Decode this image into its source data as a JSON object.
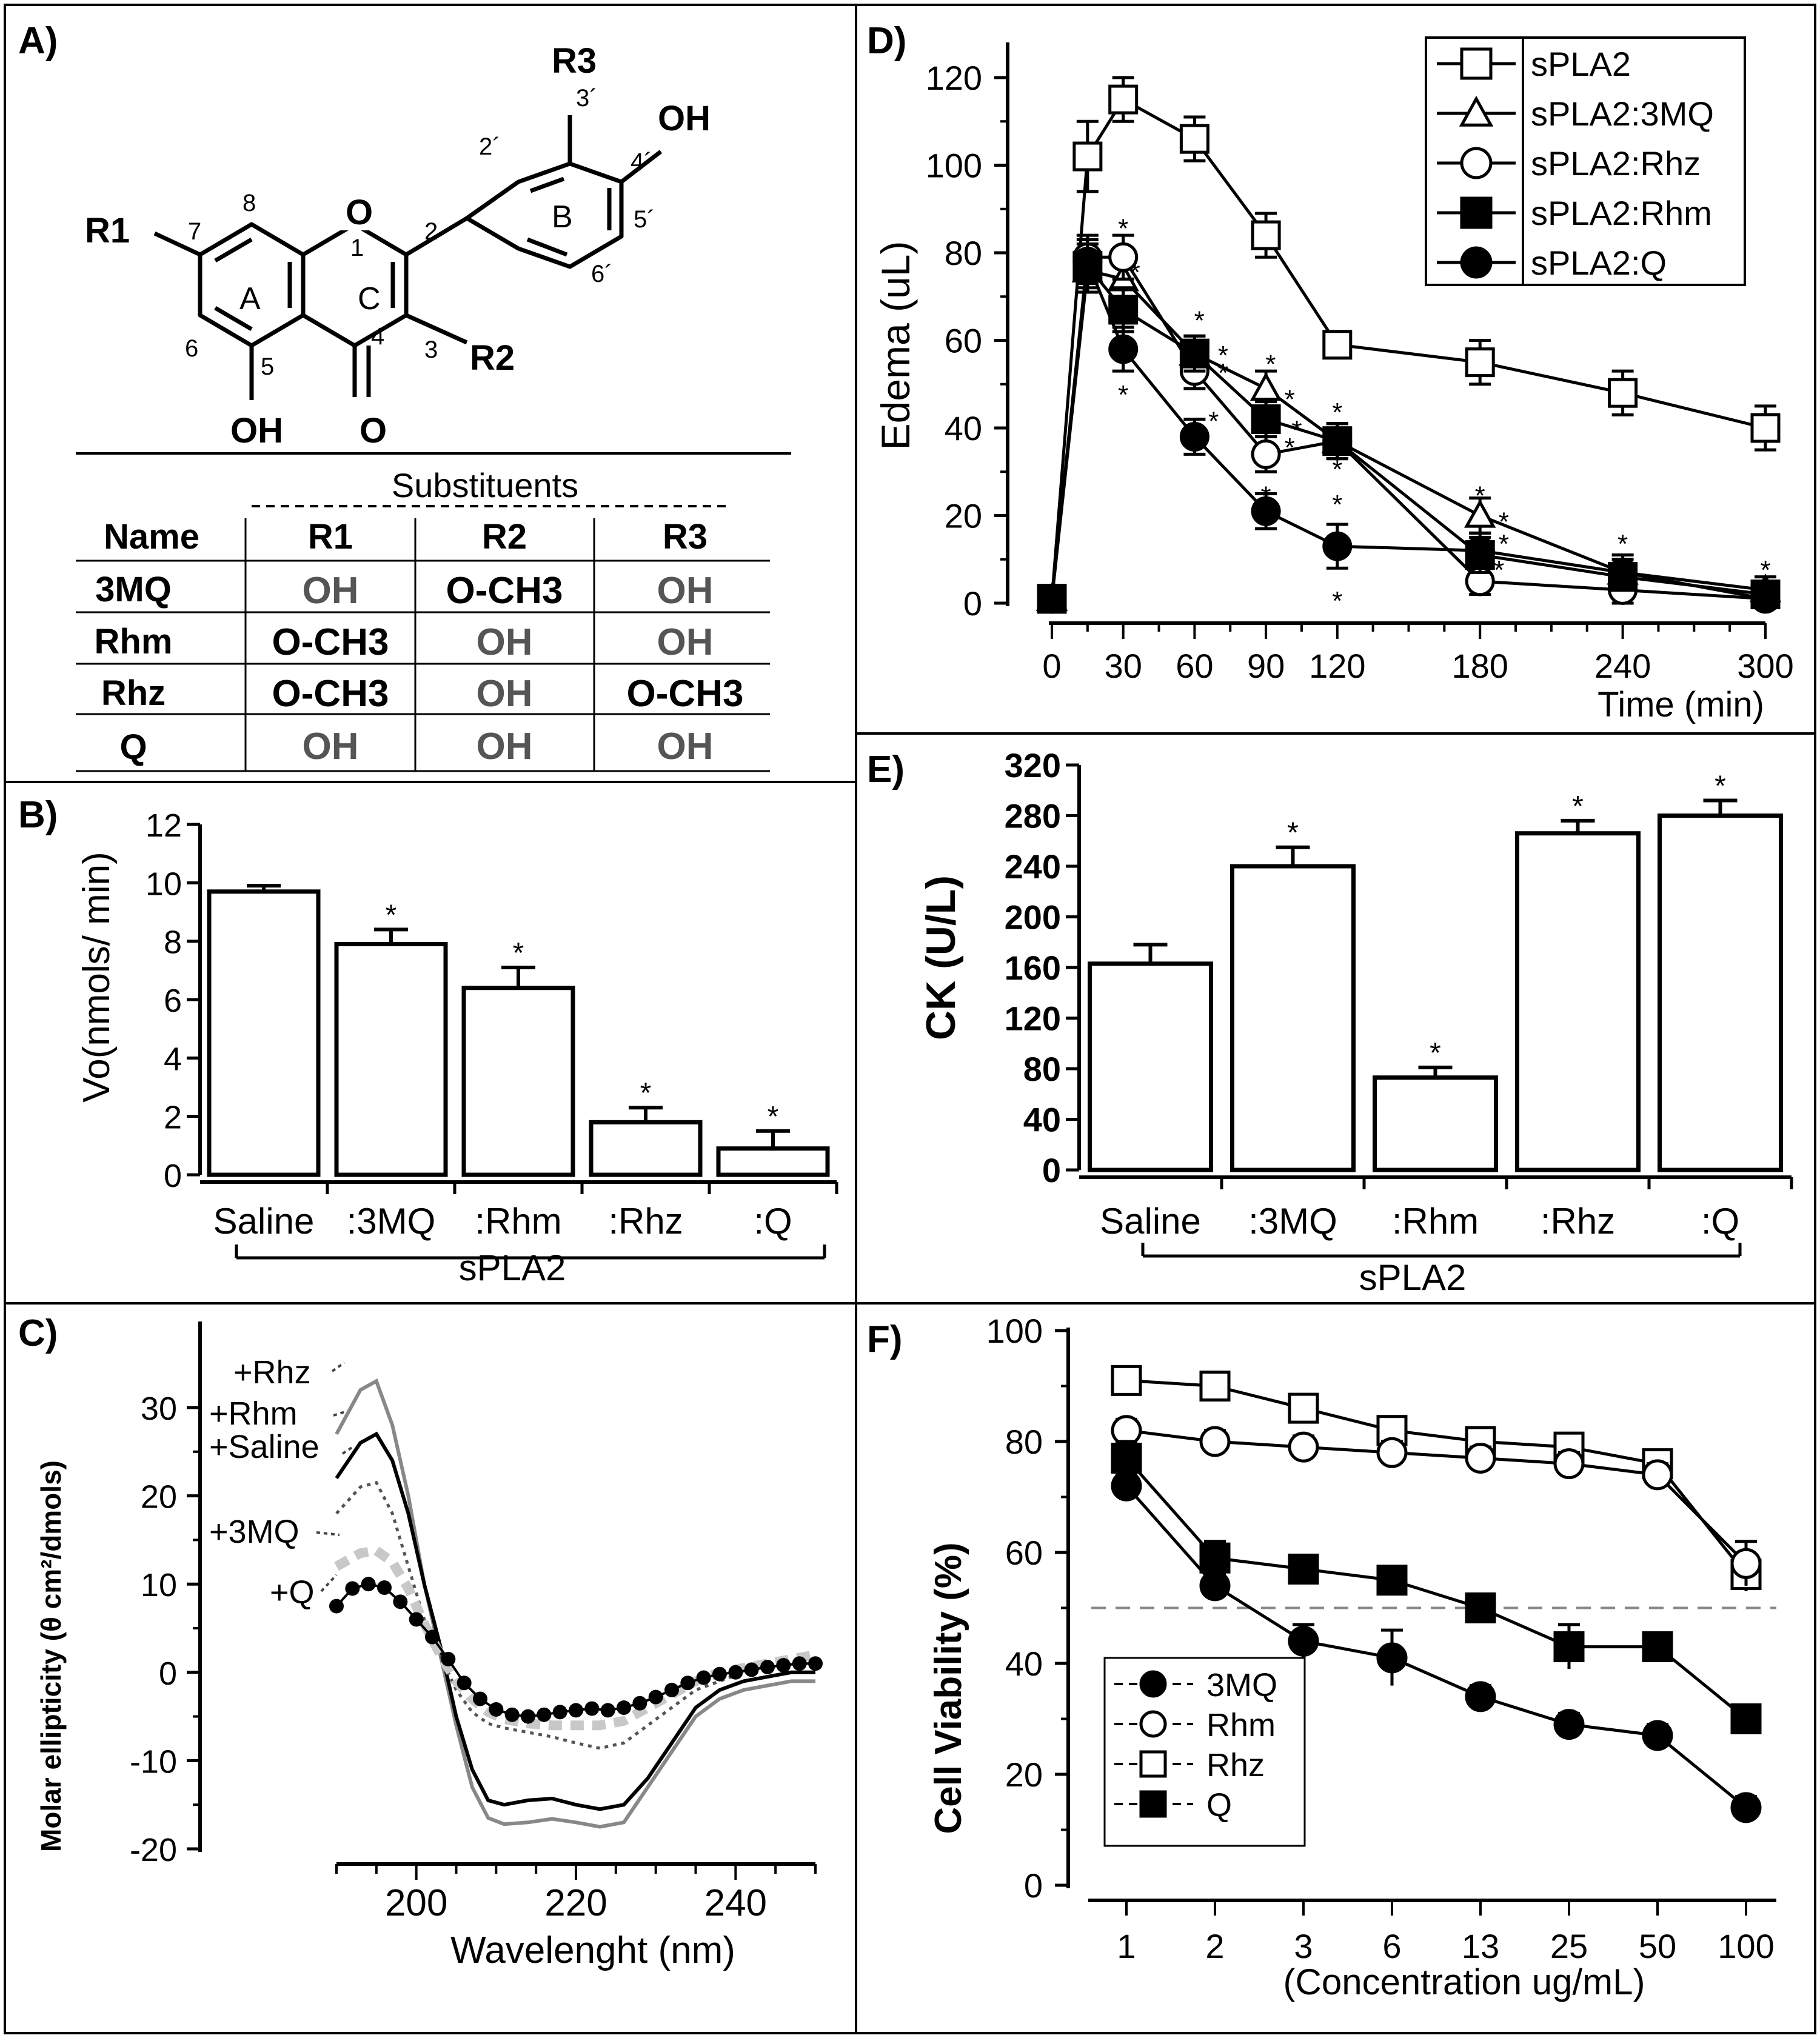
{
  "chart_data": [
    {
      "panel": "A)",
      "type": "table",
      "structure_labels": {
        "R1": "R1",
        "R2": "R2",
        "R3": "R3",
        "OH_top": "OH",
        "OH_bottom": "OH",
        "O_carbonyl": "O",
        "O_ring": "O",
        "ring_A": "A",
        "ring_B": "B",
        "ring_C": "C",
        "n1": "1",
        "n2": "2",
        "n3": "3",
        "n4": "4",
        "n5": "5",
        "n6": "6",
        "n7": "7",
        "n8": "8",
        "n2p": "2´",
        "n3p": "3´",
        "n4p": "4´",
        "n5p": "5´",
        "n6p": "6´"
      },
      "table_title": "Substituents",
      "columns": [
        "Name",
        "R1",
        "R2",
        "R3"
      ],
      "rows": [
        [
          "3MQ",
          "OH",
          "O-CH3",
          "OH"
        ],
        [
          "Rhm",
          "O-CH3",
          "OH",
          "OH"
        ],
        [
          "Rhz",
          "O-CH3",
          "OH",
          "O-CH3"
        ],
        [
          "Q",
          "OH",
          "OH",
          "OH"
        ]
      ]
    },
    {
      "panel": "B)",
      "type": "bar",
      "ylabel": "Vo(nmols/ min)",
      "ylim": [
        0,
        12
      ],
      "yticks": [
        "0",
        "2",
        "4",
        "6",
        "8",
        "10",
        "12"
      ],
      "categories": [
        "Saline",
        ":3MQ",
        ":Rhm",
        ":Rhz",
        ":Q"
      ],
      "values": [
        9.7,
        7.9,
        6.4,
        1.8,
        0.9
      ],
      "errors": [
        0.2,
        0.5,
        0.7,
        0.5,
        0.6
      ],
      "significance": [
        "",
        "*",
        "*",
        "*",
        "*"
      ],
      "group_label": "sPLA2"
    },
    {
      "panel": "C)",
      "type": "line",
      "xlabel": "Wavelenght (nm)",
      "ylabel": "Molar ellipticity (θ cm²/dmols)",
      "xlim": [
        190,
        250
      ],
      "ylim": [
        -20,
        35
      ],
      "xticks": [
        "200",
        "220",
        "240"
      ],
      "yticks": [
        "-20",
        "-10",
        "0",
        "10",
        "20",
        "30"
      ],
      "series": [
        {
          "name": "+Rhz",
          "color": "#888888",
          "style": "solid",
          "x": [
            190,
            193,
            195,
            197,
            199,
            201,
            203,
            205,
            207,
            209,
            211,
            214,
            217,
            220,
            223,
            226,
            229,
            232,
            235,
            238,
            241,
            244,
            247,
            250
          ],
          "y": [
            27,
            32,
            33,
            28,
            20,
            10,
            2,
            -6,
            -13,
            -16.5,
            -17.2,
            -17,
            -16.6,
            -17,
            -17.5,
            -17,
            -13,
            -9,
            -5,
            -3,
            -2,
            -1.5,
            -1,
            -1
          ]
        },
        {
          "name": "+Rhm",
          "color": "#000000",
          "style": "solid",
          "x": [
            190,
            193,
            195,
            197,
            199,
            201,
            203,
            205,
            207,
            209,
            211,
            214,
            217,
            220,
            223,
            226,
            229,
            232,
            235,
            238,
            241,
            244,
            247,
            250
          ],
          "y": [
            22,
            26,
            27,
            24,
            18,
            10,
            3,
            -5,
            -11,
            -14.5,
            -15,
            -14.5,
            -14.3,
            -15,
            -15.5,
            -15,
            -12,
            -8,
            -4,
            -2,
            -1,
            -0.5,
            0,
            0
          ]
        },
        {
          "name": "+Saline",
          "color": "#555555",
          "style": "dotted",
          "x": [
            190,
            193,
            195,
            197,
            199,
            201,
            203,
            205,
            207,
            209,
            211,
            214,
            217,
            220,
            223,
            226,
            229,
            232,
            235,
            238,
            241,
            244,
            247,
            250
          ],
          "y": [
            18,
            21,
            21.5,
            18,
            12,
            6,
            2,
            -2,
            -4.5,
            -5.8,
            -6.3,
            -6.8,
            -7.3,
            -8,
            -8.6,
            -8,
            -6,
            -4,
            -2,
            -1,
            0,
            0.5,
            1,
            1
          ]
        },
        {
          "name": "+3MQ",
          "color": "#c8c8c8",
          "style": "dashed",
          "x": [
            190,
            193,
            195,
            197,
            199,
            201,
            203,
            205,
            207,
            209,
            211,
            214,
            217,
            220,
            223,
            226,
            229,
            232,
            235,
            238,
            241,
            244,
            247,
            250
          ],
          "y": [
            12,
            13.5,
            13.8,
            12.5,
            9.5,
            5.5,
            2,
            -1,
            -3,
            -4.5,
            -5.3,
            -5.8,
            -6,
            -6,
            -6,
            -5.5,
            -4,
            -2.5,
            -1,
            0,
            0.5,
            1,
            1.5,
            2
          ]
        },
        {
          "name": "+Q",
          "color": "#000000",
          "style": "filled-circles",
          "x": [
            190,
            192,
            194,
            196,
            198,
            200,
            202,
            204,
            206,
            208,
            210,
            212,
            214,
            216,
            218,
            220,
            222,
            224,
            226,
            228,
            230,
            232,
            234,
            236,
            238,
            240,
            242,
            244,
            246,
            248,
            250
          ],
          "y": [
            7.5,
            9.5,
            10,
            9.6,
            8,
            6,
            4,
            1.5,
            -1.2,
            -3,
            -4.2,
            -4.8,
            -5,
            -4.8,
            -4.5,
            -4.3,
            -4.1,
            -4.3,
            -4,
            -3.5,
            -2.8,
            -2,
            -1.2,
            -0.6,
            -0.2,
            0,
            0.3,
            0.6,
            0.8,
            1,
            1
          ]
        }
      ]
    },
    {
      "panel": "D)",
      "type": "line",
      "xlabel": "Time (min)",
      "ylabel": "Edema (uL)",
      "xlim": [
        0,
        300
      ],
      "ylim": [
        0,
        120
      ],
      "xticks": [
        "0",
        "30",
        "60",
        "90",
        "120",
        "180",
        "240",
        "300"
      ],
      "yticks": [
        "0",
        "20",
        "40",
        "60",
        "80",
        "100",
        "120"
      ],
      "series": [
        {
          "name": "sPLA2",
          "marker": "square-open",
          "x": [
            0,
            15,
            30,
            60,
            90,
            120,
            180,
            240,
            300
          ],
          "y": [
            1,
            102,
            115,
            106,
            84,
            59,
            55,
            48,
            40
          ],
          "err": [
            2,
            8,
            5,
            5,
            5,
            3,
            5,
            5,
            5
          ]
        },
        {
          "name": "sPLA2:3MQ",
          "marker": "triangle-open",
          "x": [
            0,
            15,
            30,
            60,
            90,
            120,
            180,
            240,
            300
          ],
          "y": [
            1,
            76,
            74,
            57,
            49,
            37,
            20,
            7,
            3
          ],
          "err": [
            2,
            5,
            5,
            4,
            4,
            4,
            4,
            4,
            3
          ]
        },
        {
          "name": "sPLA2:Rhz",
          "marker": "circle-open",
          "x": [
            0,
            15,
            30,
            60,
            90,
            120,
            180,
            240,
            300
          ],
          "y": [
            1,
            79,
            79,
            53,
            34,
            37,
            5,
            3,
            1
          ],
          "err": [
            2,
            5,
            5,
            4,
            4,
            4,
            3,
            3,
            2
          ]
        },
        {
          "name": "sPLA2:Rhm",
          "marker": "square-filled",
          "x": [
            0,
            15,
            30,
            60,
            90,
            120,
            180,
            240,
            300
          ],
          "y": [
            1,
            77,
            67,
            57,
            42,
            37,
            11,
            6,
            2
          ],
          "err": [
            2,
            5,
            5,
            4,
            4,
            4,
            4,
            3,
            2
          ]
        },
        {
          "name": "sPLA2:Q",
          "marker": "circle-filled",
          "x": [
            0,
            15,
            30,
            60,
            90,
            120,
            180,
            240,
            300
          ],
          "y": [
            1,
            78,
            58,
            38,
            21,
            13,
            12,
            7,
            1
          ],
          "err": [
            2,
            5,
            5,
            4,
            4,
            5,
            4,
            3,
            2
          ]
        }
      ],
      "significance": [
        {
          "x": 30,
          "y": 86,
          "t": "*"
        },
        {
          "x": 35,
          "y": 76,
          "t": "*"
        },
        {
          "x": 30,
          "y": 48,
          "t": "*"
        },
        {
          "x": 62,
          "y": 65,
          "t": "*"
        },
        {
          "x": 72,
          "y": 57,
          "t": "*"
        },
        {
          "x": 72,
          "y": 53,
          "t": "*"
        },
        {
          "x": 68,
          "y": 42,
          "t": "*"
        },
        {
          "x": 92,
          "y": 55,
          "t": "*"
        },
        {
          "x": 100,
          "y": 47,
          "t": "*"
        },
        {
          "x": 103,
          "y": 40,
          "t": "*"
        },
        {
          "x": 100,
          "y": 36,
          "t": "*"
        },
        {
          "x": 90,
          "y": 25,
          "t": "*"
        },
        {
          "x": 120,
          "y": 44,
          "t": "*"
        },
        {
          "x": 120,
          "y": 31,
          "t": "*"
        },
        {
          "x": 120,
          "y": 23,
          "t": "*"
        },
        {
          "x": 120,
          "y": 1,
          "t": "*"
        },
        {
          "x": 180,
          "y": 25,
          "t": "*"
        },
        {
          "x": 190,
          "y": 19,
          "t": "*"
        },
        {
          "x": 190,
          "y": 14,
          "t": "*"
        },
        {
          "x": 188,
          "y": 8,
          "t": "*"
        },
        {
          "x": 240,
          "y": 14,
          "t": "*"
        },
        {
          "x": 300,
          "y": 8,
          "t": "*"
        }
      ]
    },
    {
      "panel": "E)",
      "type": "bar",
      "ylabel": "CK (U/L)",
      "ylim": [
        0,
        320
      ],
      "yticks": [
        "0",
        "40",
        "80",
        "120",
        "160",
        "200",
        "240",
        "280",
        "320"
      ],
      "categories": [
        "Saline",
        ":3MQ",
        ":Rhm",
        ":Rhz",
        ":Q"
      ],
      "values": [
        163,
        240,
        73,
        266,
        280
      ],
      "errors": [
        15,
        15,
        8,
        10,
        12
      ],
      "significance": [
        "",
        "*",
        "*",
        "*",
        "*"
      ],
      "group_label": "sPLA2"
    },
    {
      "panel": "F)",
      "type": "line",
      "xlabel": "(Concentration ug/mL)",
      "ylabel": "Cell Viability (%)",
      "ylim": [
        0,
        100
      ],
      "categories": [
        "1",
        "2",
        "3",
        "6",
        "13",
        "25",
        "50",
        "100"
      ],
      "yticks": [
        "0",
        "20",
        "40",
        "60",
        "80",
        "100"
      ],
      "reference_line": 50,
      "series": [
        {
          "name": "3MQ",
          "marker": "circle-filled",
          "values": [
            72,
            54,
            44,
            41,
            34,
            29,
            27,
            14
          ],
          "err": [
            2,
            2,
            3,
            5,
            2,
            2,
            2,
            2
          ]
        },
        {
          "name": "Rhm",
          "marker": "circle-open",
          "values": [
            82,
            80,
            79,
            78,
            77,
            76,
            74,
            58
          ],
          "err": [
            2,
            2,
            2,
            2,
            2,
            2,
            2,
            4
          ]
        },
        {
          "name": "Rhz",
          "marker": "square-open",
          "values": [
            91,
            90,
            86,
            82,
            80,
            79,
            76,
            56
          ],
          "err": [
            2,
            2,
            2,
            2,
            2,
            2,
            2,
            3
          ]
        },
        {
          "name": "Q",
          "marker": "square-filled",
          "values": [
            77,
            59,
            57,
            55,
            50,
            43,
            43,
            30
          ],
          "err": [
            3,
            3,
            2,
            2,
            2,
            4,
            2,
            2
          ]
        }
      ]
    }
  ]
}
